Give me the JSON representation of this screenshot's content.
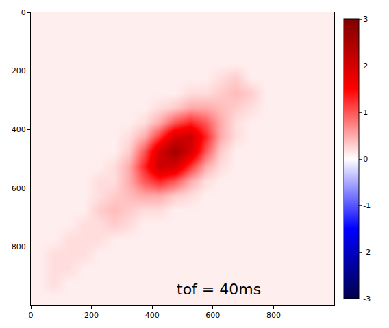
{
  "chart_data": {
    "type": "heatmap",
    "x": [
      25,
      75,
      125,
      175,
      225,
      275,
      325,
      375,
      425,
      475,
      525,
      575,
      625,
      675,
      725,
      775,
      825,
      875,
      925,
      975
    ],
    "y": [
      25,
      75,
      125,
      175,
      225,
      275,
      325,
      375,
      425,
      475,
      525,
      575,
      625,
      675,
      725,
      775,
      825,
      875,
      925,
      975
    ],
    "z": [
      [
        0.1,
        0.1,
        0.1,
        0.1,
        0.1,
        0.1,
        0.1,
        0.1,
        0.1,
        0.1,
        0.1,
        0.1,
        0.1,
        0.1,
        0.1,
        0.1,
        0.1,
        0.1,
        0.1,
        0.1
      ],
      [
        0.1,
        0.1,
        0.1,
        0.1,
        0.1,
        0.1,
        0.1,
        0.1,
        0.1,
        0.1,
        0.1,
        0.1,
        0.1,
        0.1,
        0.1,
        0.1,
        0.1,
        0.1,
        0.1,
        0.1
      ],
      [
        0.1,
        0.1,
        0.1,
        0.1,
        0.1,
        0.1,
        0.1,
        0.1,
        0.1,
        0.1,
        0.1,
        0.1,
        0.1,
        0.1,
        0.1,
        0.1,
        0.1,
        0.1,
        0.1,
        0.1
      ],
      [
        0.1,
        0.1,
        0.1,
        0.1,
        0.1,
        0.1,
        0.1,
        0.1,
        0.1,
        0.1,
        0.1,
        0.1,
        0.1,
        0.1,
        0.1,
        0.1,
        0.1,
        0.1,
        0.1,
        0.1
      ],
      [
        0.1,
        0.1,
        0.1,
        0.1,
        0.1,
        0.1,
        0.1,
        0.1,
        0.1,
        0.1,
        0.1,
        0.1,
        0.2,
        0.3,
        0.1,
        0.1,
        0.1,
        0.1,
        0.1,
        0.1
      ],
      [
        0.1,
        0.1,
        0.1,
        0.1,
        0.1,
        0.1,
        0.1,
        0.1,
        0.1,
        0.1,
        0.2,
        0.2,
        0.3,
        0.4,
        0.3,
        0.1,
        0.1,
        0.1,
        0.1,
        0.1
      ],
      [
        0.1,
        0.1,
        0.1,
        0.1,
        0.1,
        0.1,
        0.1,
        0.1,
        0.2,
        0.3,
        0.5,
        0.5,
        0.4,
        0.3,
        0.2,
        0.1,
        0.1,
        0.1,
        0.1,
        0.1
      ],
      [
        0.1,
        0.1,
        0.1,
        0.1,
        0.1,
        0.1,
        0.1,
        0.2,
        0.5,
        1.0,
        1.3,
        1.0,
        0.5,
        0.2,
        0.1,
        0.1,
        0.1,
        0.1,
        0.1,
        0.1
      ],
      [
        0.1,
        0.1,
        0.1,
        0.1,
        0.1,
        0.1,
        0.2,
        0.5,
        1.2,
        2.0,
        2.1,
        1.3,
        0.5,
        0.2,
        0.1,
        0.1,
        0.1,
        0.1,
        0.1,
        0.1
      ],
      [
        0.1,
        0.1,
        0.1,
        0.1,
        0.1,
        0.1,
        0.3,
        1.0,
        2.0,
        2.6,
        2.0,
        1.0,
        0.3,
        0.1,
        0.1,
        0.1,
        0.1,
        0.1,
        0.1,
        0.1
      ],
      [
        0.1,
        0.1,
        0.1,
        0.1,
        0.1,
        0.2,
        0.5,
        1.3,
        2.1,
        2.0,
        1.2,
        0.5,
        0.2,
        0.1,
        0.1,
        0.1,
        0.1,
        0.1,
        0.1,
        0.1
      ],
      [
        0.1,
        0.1,
        0.1,
        0.1,
        0.2,
        0.2,
        0.5,
        1.0,
        1.3,
        1.0,
        0.5,
        0.2,
        0.1,
        0.1,
        0.1,
        0.1,
        0.1,
        0.1,
        0.1,
        0.1
      ],
      [
        0.1,
        0.1,
        0.1,
        0.1,
        0.2,
        0.3,
        0.4,
        0.5,
        0.5,
        0.3,
        0.2,
        0.1,
        0.1,
        0.1,
        0.1,
        0.1,
        0.1,
        0.1,
        0.1,
        0.1
      ],
      [
        0.1,
        0.1,
        0.1,
        0.1,
        0.3,
        0.4,
        0.3,
        0.2,
        0.2,
        0.1,
        0.1,
        0.1,
        0.1,
        0.1,
        0.1,
        0.1,
        0.1,
        0.1,
        0.1,
        0.1
      ],
      [
        0.1,
        0.1,
        0.1,
        0.2,
        0.2,
        0.3,
        0.2,
        0.1,
        0.1,
        0.1,
        0.1,
        0.1,
        0.1,
        0.1,
        0.1,
        0.1,
        0.1,
        0.1,
        0.1,
        0.1
      ],
      [
        0.1,
        0.1,
        0.2,
        0.2,
        0.2,
        0.1,
        0.1,
        0.1,
        0.1,
        0.1,
        0.1,
        0.1,
        0.1,
        0.1,
        0.1,
        0.1,
        0.1,
        0.1,
        0.1,
        0.1
      ],
      [
        0.1,
        0.2,
        0.2,
        0.2,
        0.1,
        0.1,
        0.1,
        0.1,
        0.1,
        0.1,
        0.1,
        0.1,
        0.1,
        0.1,
        0.1,
        0.1,
        0.1,
        0.1,
        0.1,
        0.1
      ],
      [
        0.1,
        0.2,
        0.2,
        0.1,
        0.1,
        0.1,
        0.1,
        0.1,
        0.1,
        0.1,
        0.1,
        0.1,
        0.1,
        0.1,
        0.1,
        0.1,
        0.1,
        0.1,
        0.1,
        0.1
      ],
      [
        0.1,
        0.2,
        0.1,
        0.1,
        0.1,
        0.1,
        0.1,
        0.1,
        0.1,
        0.1,
        0.1,
        0.1,
        0.1,
        0.1,
        0.1,
        0.1,
        0.1,
        0.1,
        0.1,
        0.1
      ],
      [
        0.1,
        0.1,
        0.1,
        0.1,
        0.1,
        0.1,
        0.1,
        0.1,
        0.1,
        0.1,
        0.1,
        0.1,
        0.1,
        0.1,
        0.1,
        0.1,
        0.1,
        0.1,
        0.1,
        0.1
      ]
    ],
    "xlim": [
      0,
      1000
    ],
    "ylim": [
      1000,
      0
    ],
    "xticks": [
      0,
      200,
      400,
      600,
      800
    ],
    "yticks": [
      0,
      200,
      400,
      600,
      800
    ],
    "colorbar": {
      "range": [
        -3,
        3
      ],
      "ticks": [
        -3,
        -2,
        -1,
        0,
        1,
        2,
        3
      ]
    },
    "annotations": [
      "tof = 40ms"
    ]
  }
}
